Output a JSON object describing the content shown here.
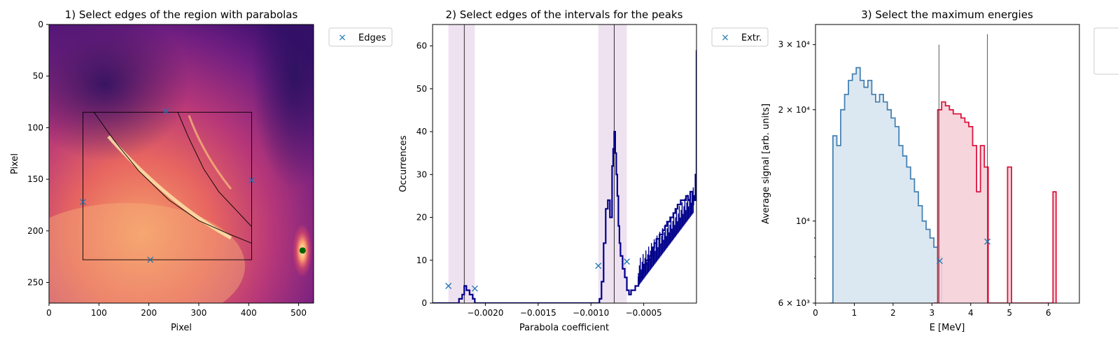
{
  "figure": {
    "background": "#ffffff"
  },
  "chart_data": [
    {
      "type": "heatmap",
      "title": "1) Select edges of the region with parabolas",
      "xlabel": "Pixel",
      "ylabel": "Pixel",
      "xlim": [
        0,
        530
      ],
      "ylim": [
        270,
        0
      ],
      "xticks": [
        "0",
        "100",
        "200",
        "300",
        "400",
        "500"
      ],
      "yticks": [
        "0",
        "50",
        "100",
        "150",
        "200",
        "250"
      ],
      "colormap": "magma",
      "legend": {
        "placement": "outside-top-right",
        "entries": [
          {
            "label": "Edges",
            "marker": "x",
            "color": "#1f77b4"
          }
        ]
      },
      "region_box": {
        "x0": 68,
        "x1": 406,
        "y0": 85,
        "y1": 228
      },
      "edge_points": [
        {
          "x": 234,
          "y": 84
        },
        {
          "x": 406,
          "y": 151
        },
        {
          "x": 68,
          "y": 172
        },
        {
          "x": 203,
          "y": 228
        }
      ],
      "green_dot": {
        "x": 508,
        "y": 219,
        "color": "#006400"
      },
      "parabolas": [
        {
          "name": "",
          "points": [
            [
              90,
              85
            ],
            [
              130,
              112
            ],
            [
              180,
              142
            ],
            [
              240,
              170
            ],
            [
              300,
              190
            ],
            [
              360,
              203
            ],
            [
              406,
              212
            ]
          ]
        },
        {
          "name": "",
          "points": [
            [
              258,
              85
            ],
            [
              280,
              110
            ],
            [
              310,
              140
            ],
            [
              340,
              162
            ],
            [
              375,
              180
            ],
            [
              406,
              196
            ]
          ]
        }
      ]
    },
    {
      "type": "histogram",
      "title": "2) Select edges of the intervals for the peaks",
      "xlabel": "Parabola coefficient",
      "ylabel": "Occurrences",
      "xlim": [
        -0.0025,
        0.0
      ],
      "ylim": [
        0,
        65
      ],
      "xticks": [
        "−0.0020",
        "−0.0015",
        "−0.0010",
        "−0.0005"
      ],
      "xtick_values": [
        -0.002,
        -0.0015,
        -0.001,
        -0.0005
      ],
      "yticks": [
        "0",
        "10",
        "20",
        "30",
        "40",
        "50",
        "60"
      ],
      "line_color": "#00008b",
      "shade_color": "#e8d5ea",
      "legend": {
        "placement": "outside-top-right",
        "entries": [
          {
            "label": "Extr.",
            "marker": "x",
            "color": "#1f77b4"
          }
        ]
      },
      "shaded_intervals": [
        [
          -0.00235,
          -0.0021
        ],
        [
          -0.00093,
          -0.00066
        ]
      ],
      "vertical_lines": [
        -0.0022,
        -0.00078
      ],
      "extremum_points": [
        {
          "x": -0.00235,
          "y": 4
        },
        {
          "x": -0.0021,
          "y": 3.4
        },
        {
          "x": -0.00093,
          "y": 8.7
        },
        {
          "x": -0.00066,
          "y": 9.7
        }
      ],
      "series": [
        {
          "x": [
            -0.0025,
            -0.0024,
            -0.0023,
            -0.00225,
            -0.00222,
            -0.0022,
            -0.00218,
            -0.00215,
            -0.00212,
            -0.0021,
            -0.00205,
            -0.0018,
            -0.0015,
            -0.0012,
            -0.001,
            -0.00092,
            -0.0009,
            -0.00088,
            -0.00086,
            -0.00084,
            -0.00082,
            -0.0008,
            -0.00079,
            -0.00078,
            -0.00077,
            -0.00076,
            -0.00075,
            -0.00074,
            -0.00073,
            -0.00072,
            -0.0007,
            -0.00068,
            -0.00066,
            -0.00064,
            -0.00062,
            -0.0006,
            -0.00058,
            -0.00055,
            -0.00052,
            -0.0005,
            -0.00048,
            -0.00045,
            -0.00042,
            -0.0004,
            -0.00038,
            -0.00035,
            -0.00032,
            -0.0003,
            -0.00028,
            -0.00025,
            -0.00022,
            -0.0002,
            -0.00018,
            -0.00015,
            -0.00012,
            -0.0001,
            -8e-05,
            -6e-05,
            -4e-05,
            -3e-05,
            -2e-05,
            -1e-05,
            0.0
          ],
          "y": [
            0,
            0,
            0,
            1,
            2,
            4,
            3,
            2,
            1,
            0,
            0,
            0,
            0,
            0,
            0,
            1,
            5,
            14,
            22,
            24,
            20,
            32,
            36,
            40,
            35,
            30,
            25,
            18,
            14,
            11,
            8,
            6,
            3,
            2,
            3,
            3,
            4,
            6,
            7,
            9,
            10,
            11,
            13,
            14,
            15,
            16,
            17,
            18,
            19,
            20,
            21,
            22,
            23,
            24,
            24,
            25,
            24,
            26,
            23,
            25,
            24,
            30,
            59
          ]
        }
      ]
    },
    {
      "type": "histogram",
      "title": "3) Select the maximum energies",
      "xlabel": "E [MeV]",
      "ylabel": "Average signal [arb. units]",
      "xlim": [
        0,
        6.8
      ],
      "ylim": [
        6000,
        34000
      ],
      "yscale": "log",
      "xticks": [
        "0",
        "1",
        "2",
        "3",
        "4",
        "5",
        "6"
      ],
      "yticks": [
        "6 × 10³",
        "10⁴",
        "2 × 10⁴",
        "3 × 10⁴"
      ],
      "ytick_values": [
        6000,
        10000,
        20000,
        30000
      ],
      "legend": {
        "placement": "outside-top-right",
        "entries": []
      },
      "vertical_lines": [
        {
          "x": 3.18,
          "top": 30000
        },
        {
          "x": 4.43,
          "top": 32000
        }
      ],
      "max_points": [
        {
          "x": 3.2,
          "y": 7800
        },
        {
          "x": 4.43,
          "y": 8800
        }
      ],
      "series": [
        {
          "color": "#4682b4",
          "fill": "#d8e5f0",
          "x": [
            0.37,
            0.45,
            0.55,
            0.65,
            0.75,
            0.85,
            0.95,
            1.05,
            1.15,
            1.25,
            1.35,
            1.45,
            1.55,
            1.65,
            1.75,
            1.85,
            1.95,
            2.05,
            2.15,
            2.25,
            2.35,
            2.45,
            2.55,
            2.65,
            2.75,
            2.85,
            2.95,
            3.05,
            3.15,
            3.25
          ],
          "y": [
            6000,
            17000,
            16000,
            20000,
            22000,
            24000,
            25000,
            26000,
            24000,
            23000,
            24000,
            22000,
            21000,
            22000,
            21000,
            20000,
            19000,
            18000,
            16000,
            15000,
            14000,
            13000,
            12000,
            11000,
            10000,
            9500,
            9000,
            8500,
            8000,
            6000
          ]
        },
        {
          "color": "#dc143c",
          "fill": "#f5d0d8",
          "x": [
            3.05,
            3.15,
            3.25,
            3.35,
            3.45,
            3.55,
            3.65,
            3.75,
            3.85,
            3.95,
            4.05,
            4.15,
            4.25,
            4.35,
            4.45,
            4.55,
            4.95,
            5.05,
            6.12,
            6.2
          ],
          "y": [
            6000,
            20000,
            21000,
            20500,
            20000,
            19500,
            19500,
            19000,
            18500,
            18000,
            16000,
            12000,
            16000,
            14000,
            6000,
            6000,
            14000,
            6000,
            12000,
            6000
          ]
        }
      ]
    }
  ]
}
